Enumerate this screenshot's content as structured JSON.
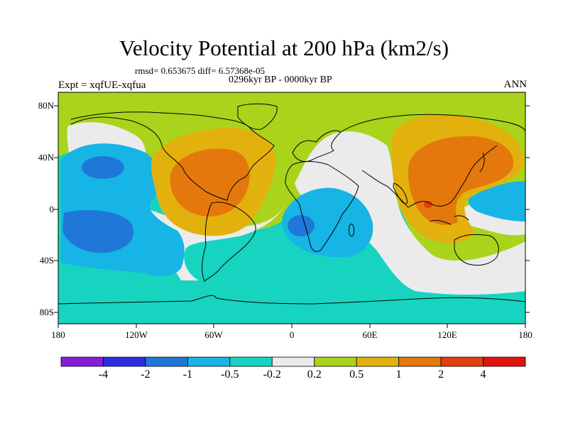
{
  "title": "Velocity Potential at 200 hPa (km2/s)",
  "stats": "rmsd= 0.653675 diff= 6.57368e-05",
  "period": "0296kyr BP - 0000kyr BP",
  "experiment": "Expt = xqfUE-xqfua",
  "season": "ANN",
  "lat_labels": [
    "80N",
    "40N",
    "0",
    "40S",
    "80S"
  ],
  "lon_labels": [
    "180",
    "120W",
    "60W",
    "0",
    "60E",
    "120E",
    "180"
  ],
  "colorbar": {
    "labels": [
      "-4",
      "-2",
      "-1",
      "-0.5",
      "-0.2",
      "0.2",
      "0.5",
      "1",
      "2",
      "4"
    ],
    "colors": [
      "#8a1bd9",
      "#2b2de0",
      "#1f78d8",
      "#17b4e6",
      "#16d4c0",
      "#ebebeb",
      "#a9d41b",
      "#e3b10e",
      "#e4780c",
      "#e2400c",
      "#e0140f"
    ]
  },
  "palette": {
    "ocean_green": "#a9d41b",
    "neutral": "#ebebeb",
    "teal": "#16d4c0",
    "light_blue": "#17b4e6",
    "blue": "#1f78d8",
    "yellow_orange": "#e3b10e",
    "orange": "#e4780c",
    "red_orange": "#e2400c",
    "coast": "#000000"
  }
}
